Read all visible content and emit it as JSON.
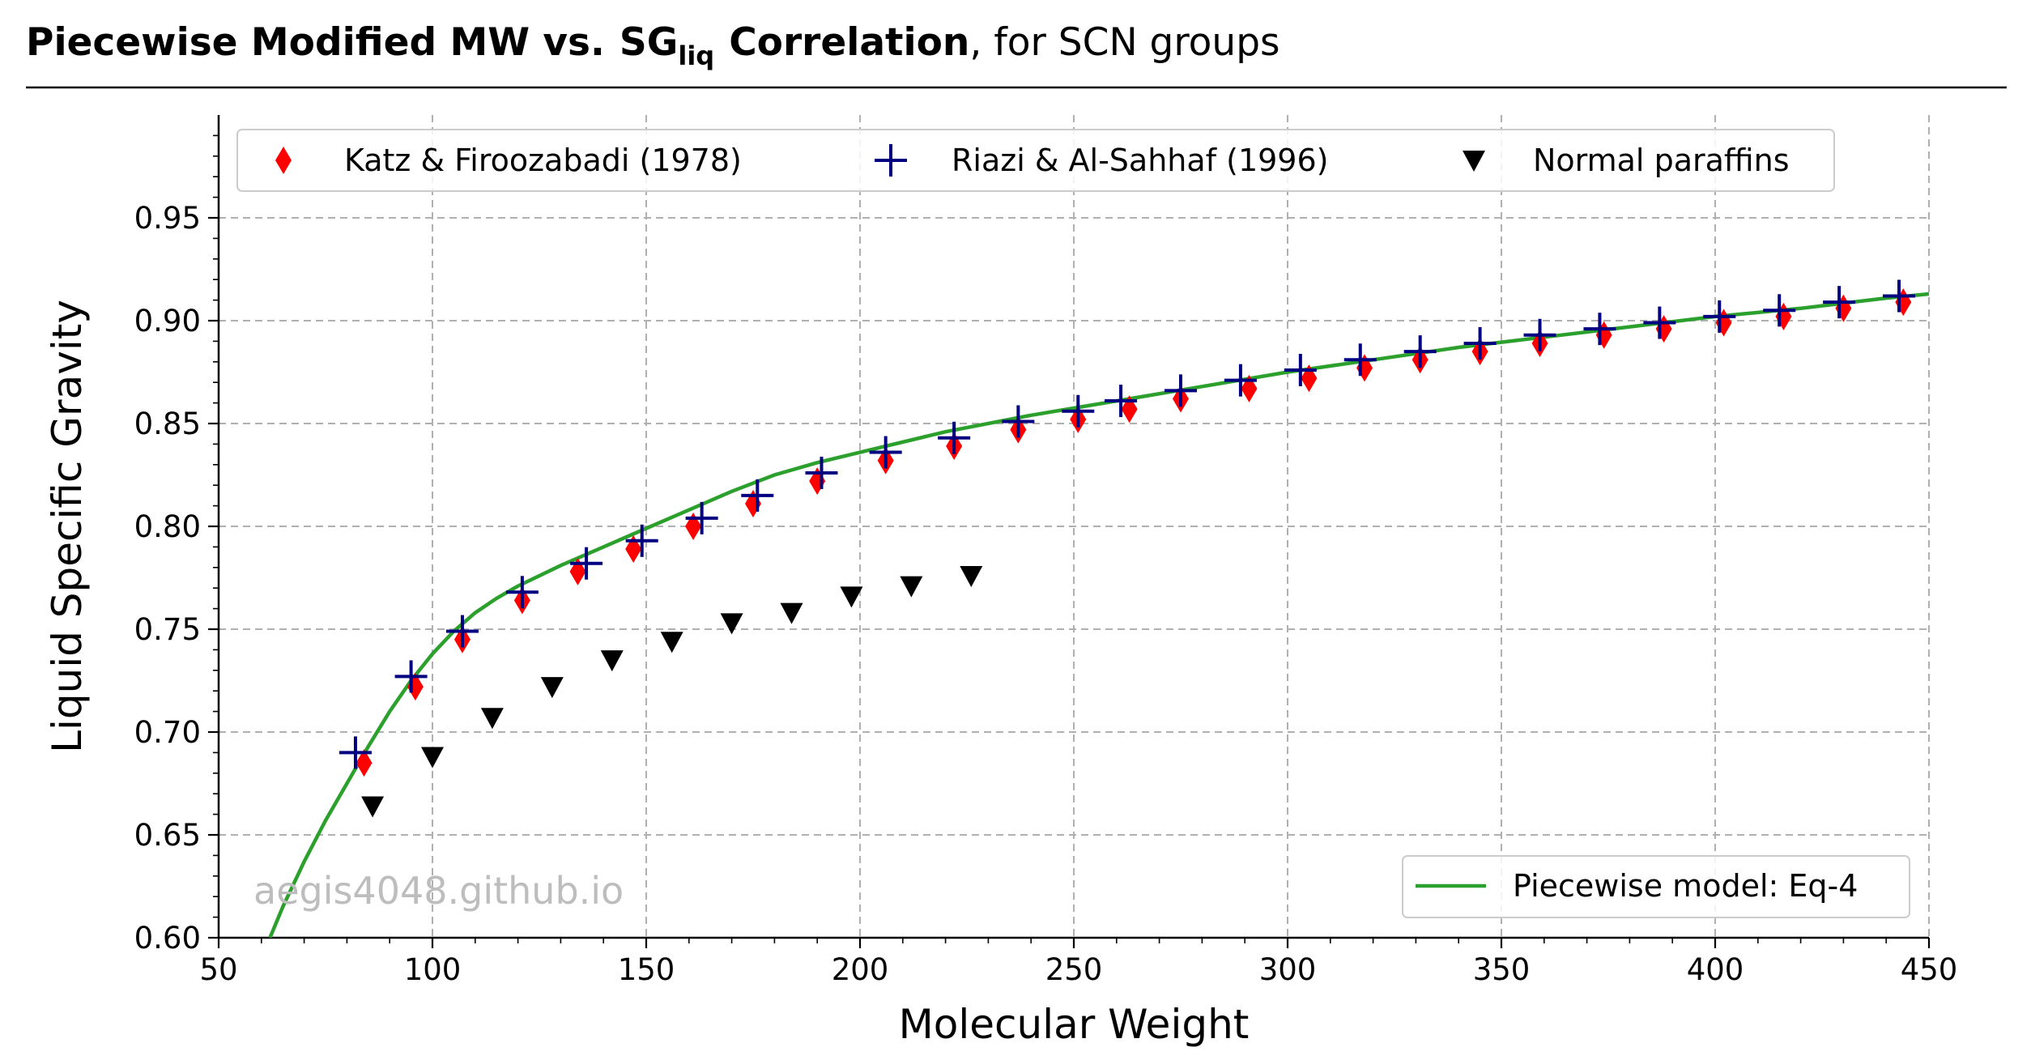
{
  "header": {
    "title_bold": "Piecewise Modified MW vs.",
    "title_sg": "SG",
    "title_sub": "liq",
    "title_bold2": "Correlation",
    "title_rest": ", for SCN groups"
  },
  "watermark": "aegis4048.github.io",
  "chart_data": {
    "type": "scatter",
    "xlabel": "Molecular Weight",
    "ylabel": "Liquid Specific Gravity",
    "xlim": [
      50,
      450
    ],
    "ylim": [
      0.6,
      1.0
    ],
    "xticks": [
      50,
      100,
      150,
      200,
      250,
      300,
      350,
      400,
      450
    ],
    "xtick_labels": [
      "50",
      "100",
      "150",
      "200",
      "250",
      "300",
      "350",
      "400",
      "450"
    ],
    "yticks": [
      0.6,
      0.65,
      0.7,
      0.75,
      0.8,
      0.85,
      0.9,
      0.95
    ],
    "ytick_labels": [
      "0.60",
      "0.65",
      "0.70",
      "0.75",
      "0.80",
      "0.85",
      "0.90",
      "0.95"
    ],
    "grid": true,
    "legend_top": "top (3 columns)",
    "legend_bottom": "lower-right",
    "series": [
      {
        "name": "Katz & Firoozabadi (1978)",
        "marker": "thin-diamond",
        "color": "#ff0000",
        "x": [
          84,
          96,
          107,
          121,
          134,
          147,
          161,
          175,
          190,
          206,
          222,
          237,
          251,
          263,
          275,
          291,
          305,
          318,
          331,
          345,
          359,
          374,
          388,
          402,
          416,
          430,
          444
        ],
        "y": [
          0.685,
          0.722,
          0.745,
          0.764,
          0.778,
          0.789,
          0.8,
          0.811,
          0.822,
          0.832,
          0.839,
          0.847,
          0.852,
          0.857,
          0.862,
          0.867,
          0.872,
          0.877,
          0.881,
          0.885,
          0.889,
          0.893,
          0.896,
          0.899,
          0.902,
          0.906,
          0.909
        ]
      },
      {
        "name": "Riazi & Al-Sahhaf (1996)",
        "marker": "plus",
        "color": "#000080",
        "x": [
          82,
          95,
          107,
          121,
          136,
          149,
          163,
          176,
          191,
          206,
          222,
          237,
          251,
          261,
          275,
          289,
          303,
          317,
          331,
          345,
          359,
          373,
          387,
          401,
          415,
          429,
          443
        ],
        "y": [
          0.69,
          0.727,
          0.749,
          0.768,
          0.782,
          0.793,
          0.804,
          0.815,
          0.826,
          0.836,
          0.843,
          0.851,
          0.856,
          0.861,
          0.866,
          0.871,
          0.876,
          0.881,
          0.885,
          0.889,
          0.893,
          0.896,
          0.899,
          0.902,
          0.905,
          0.909,
          0.912
        ]
      },
      {
        "name": "Normal paraffins",
        "marker": "triangle-down",
        "color": "#000000",
        "x": [
          86,
          100,
          114,
          128,
          142,
          156,
          170,
          184,
          198,
          212,
          226
        ],
        "y": [
          0.664,
          0.688,
          0.707,
          0.722,
          0.735,
          0.744,
          0.753,
          0.758,
          0.766,
          0.771,
          0.776
        ]
      }
    ],
    "model_line": {
      "name": "Piecewise model: Eq-4",
      "color": "#2ca02c",
      "x": [
        62,
        65,
        70,
        75,
        80,
        85,
        90,
        95,
        100,
        105,
        110,
        115,
        120,
        130,
        140,
        150,
        160,
        170,
        180,
        190,
        200,
        220,
        240,
        260,
        280,
        300,
        320,
        340,
        360,
        380,
        400,
        420,
        440,
        450
      ],
      "y": [
        0.6,
        0.615,
        0.637,
        0.657,
        0.675,
        0.693,
        0.71,
        0.725,
        0.738,
        0.749,
        0.758,
        0.765,
        0.771,
        0.781,
        0.79,
        0.799,
        0.808,
        0.817,
        0.825,
        0.831,
        0.836,
        0.846,
        0.854,
        0.861,
        0.868,
        0.875,
        0.881,
        0.887,
        0.892,
        0.897,
        0.902,
        0.906,
        0.911,
        0.913
      ]
    }
  }
}
